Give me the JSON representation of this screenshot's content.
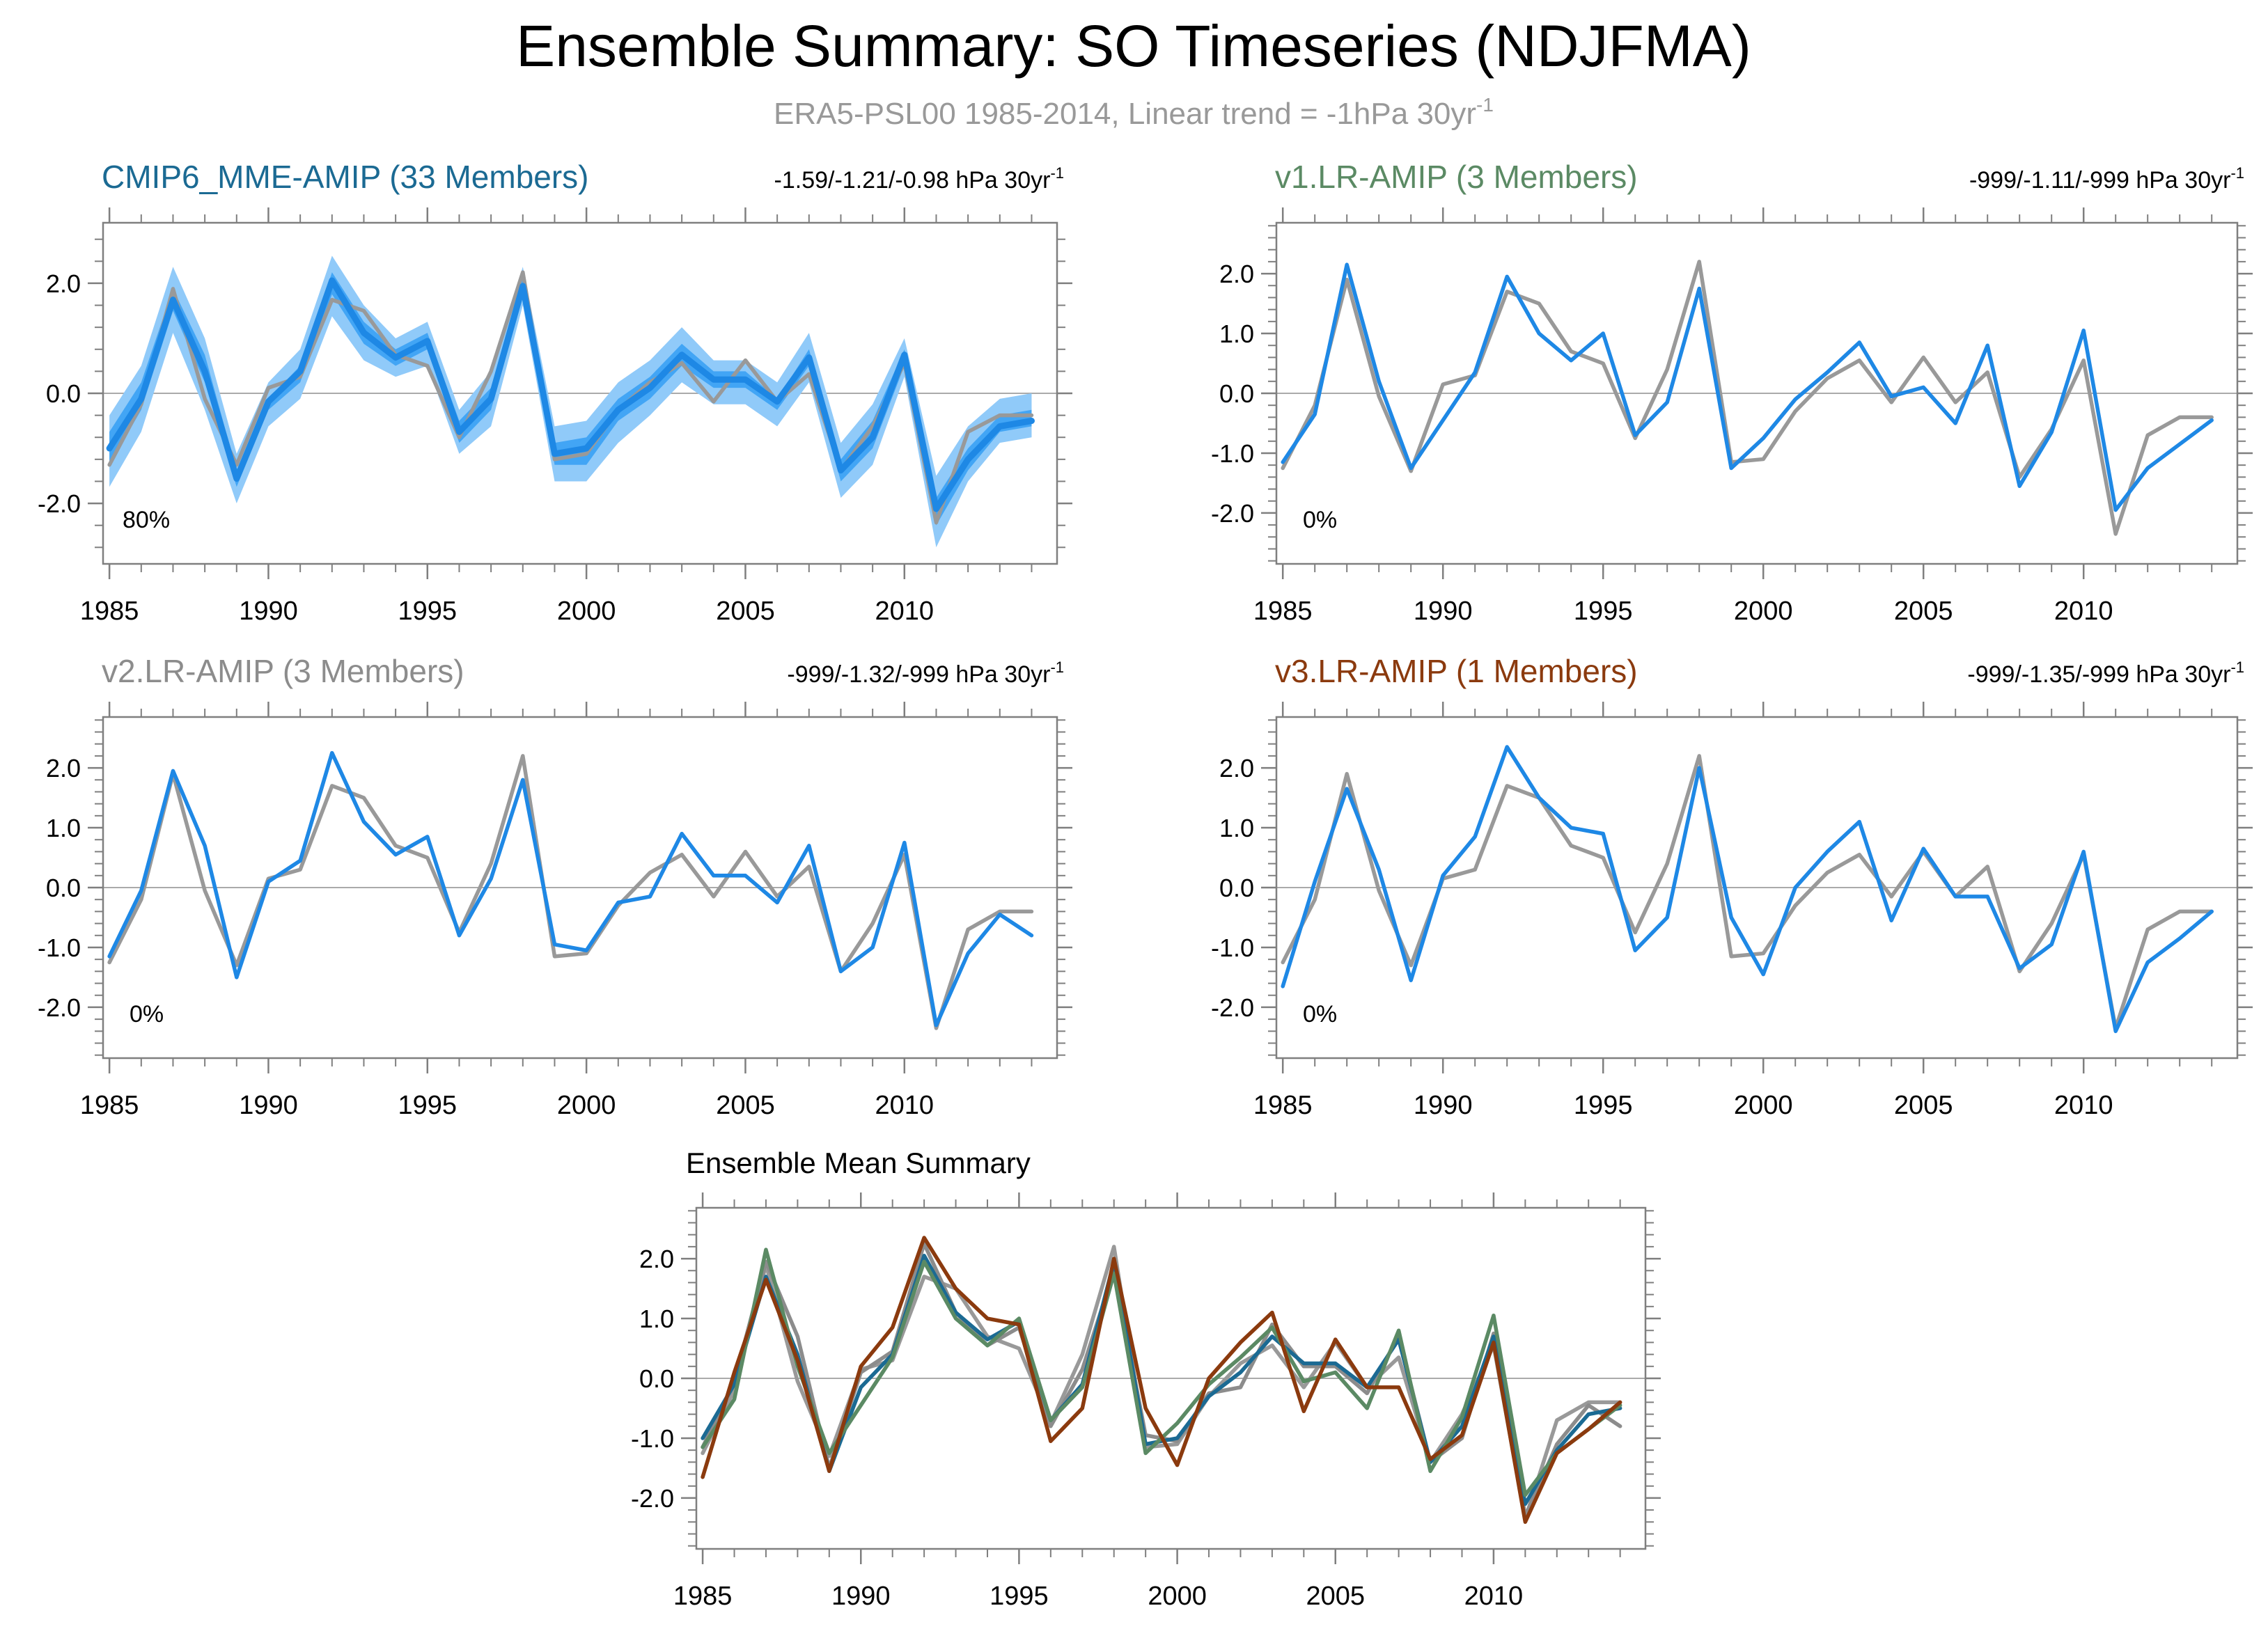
{
  "title": "Ensemble Summary: SO Timeseries (NDJFMA)",
  "subtitle_main": "ERA5-PSL00 1985-2014, Linear trend = -1hPa 30yr",
  "subtitle_sup": "-1",
  "trend_unit_sup": "-1",
  "colors": {
    "obs": "#999999",
    "model": "#1e88e5",
    "band_outer": "#90caf9",
    "band_inner": "#42a5f5",
    "cmip6": "#1b6a93",
    "v1": "#5b8a64",
    "v2": "#8c8c8c",
    "v3": "#8b3a0e"
  },
  "chart_data": [
    {
      "type": "line",
      "title": "CMIP6_MME-AMIP (33 Members)",
      "title_color": "#1b6a93",
      "trend_label": "-1.59/-1.21/-0.98 hPa 30yr",
      "pct_label": "80%",
      "x": [
        1985,
        1986,
        1987,
        1988,
        1989,
        1990,
        1991,
        1992,
        1993,
        1994,
        1995,
        1996,
        1997,
        1998,
        1999,
        2000,
        2001,
        2002,
        2003,
        2004,
        2005,
        2006,
        2007,
        2008,
        2009,
        2010,
        2011,
        2012,
        2013,
        2014
      ],
      "xticks": [
        1985,
        1990,
        1995,
        2000,
        2005,
        2010
      ],
      "xlim": [
        1984.8,
        2014.8
      ],
      "ylim": [
        -3.1,
        3.1
      ],
      "yticks": [
        -2.0,
        0.0,
        2.0
      ],
      "ytick_labels": [
        "-2.0",
        "0.0",
        "2.0"
      ],
      "band_outer": {
        "lower": [
          -1.7,
          -0.7,
          1.1,
          -0.3,
          -2.0,
          -0.6,
          -0.1,
          1.4,
          0.6,
          0.3,
          0.5,
          -1.1,
          -0.6,
          1.6,
          -1.6,
          -1.6,
          -0.9,
          -0.4,
          0.2,
          -0.2,
          -0.2,
          -0.6,
          0.2,
          -1.9,
          -1.3,
          0.3,
          -2.8,
          -1.6,
          -0.9,
          -0.8
        ],
        "upper": [
          -0.4,
          0.5,
          2.3,
          1.0,
          -1.1,
          0.2,
          0.8,
          2.5,
          1.6,
          1.0,
          1.3,
          -0.3,
          0.4,
          2.3,
          -0.6,
          -0.5,
          0.2,
          0.6,
          1.2,
          0.6,
          0.6,
          0.2,
          1.1,
          -0.9,
          -0.2,
          1.0,
          -1.5,
          -0.6,
          -0.1,
          0.0
        ]
      },
      "band_inner": {
        "lower": [
          -1.3,
          -0.3,
          1.5,
          0.2,
          -1.7,
          -0.3,
          0.2,
          1.8,
          0.9,
          0.5,
          0.8,
          -0.9,
          -0.3,
          1.8,
          -1.3,
          -1.3,
          -0.5,
          -0.1,
          0.5,
          0.1,
          0.1,
          -0.3,
          0.5,
          -1.6,
          -1.0,
          0.5,
          -2.4,
          -1.4,
          -0.7,
          -0.6
        ],
        "upper": [
          -0.7,
          0.2,
          1.9,
          0.7,
          -1.4,
          -0.1,
          0.5,
          2.2,
          1.3,
          0.8,
          1.1,
          -0.5,
          0.1,
          2.1,
          -0.9,
          -0.8,
          -0.1,
          0.3,
          0.9,
          0.4,
          0.4,
          -0.1,
          0.8,
          -1.2,
          -0.5,
          0.8,
          -1.9,
          -1.0,
          -0.4,
          -0.3
        ]
      },
      "series": [
        {
          "name": "ERA5",
          "color": "#999999",
          "values": [
            -1.3,
            -0.2,
            1.9,
            -0.1,
            -1.3,
            0.1,
            0.3,
            1.7,
            1.5,
            0.7,
            0.5,
            -0.8,
            0.4,
            2.2,
            -1.2,
            -1.1,
            -0.3,
            0.2,
            0.55,
            -0.15,
            0.6,
            -0.15,
            0.35,
            -1.4,
            -0.6,
            0.55,
            -2.35,
            -0.7,
            -0.4,
            -0.4
          ]
        },
        {
          "name": "ensemble mean",
          "color": "#1e88e5",
          "values": [
            -1.0,
            -0.1,
            1.7,
            0.4,
            -1.55,
            -0.15,
            0.4,
            2.05,
            1.1,
            0.65,
            0.95,
            -0.7,
            -0.1,
            1.95,
            -1.1,
            -1.0,
            -0.3,
            0.1,
            0.7,
            0.25,
            0.25,
            -0.15,
            0.65,
            -1.4,
            -0.8,
            0.7,
            -2.1,
            -1.2,
            -0.6,
            -0.5
          ]
        }
      ]
    },
    {
      "type": "line",
      "title": "v1.LR-AMIP (3 Members)",
      "title_color": "#5b8a64",
      "trend_label": "-999/-1.11/-999 hPa 30yr",
      "pct_label": "0%",
      "x": [
        1985,
        1986,
        1987,
        1988,
        1989,
        1990,
        1991,
        1992,
        1993,
        1994,
        1995,
        1996,
        1997,
        1998,
        1999,
        2000,
        2001,
        2002,
        2003,
        2004,
        2005,
        2006,
        2007,
        2008,
        2009,
        2010,
        2011,
        2012,
        2013,
        2014
      ],
      "xticks": [
        1985,
        1990,
        1995,
        2000,
        2005,
        2010
      ],
      "xlim": [
        1984.8,
        2014.8
      ],
      "ylim": [
        -2.85,
        2.85
      ],
      "yticks": [
        -2.0,
        -1.0,
        0.0,
        1.0,
        2.0
      ],
      "ytick_labels": [
        "-2.0",
        "-1.0",
        "0.0",
        "1.0",
        "2.0"
      ],
      "series": [
        {
          "name": "ERA5",
          "color": "#999999",
          "values": [
            -1.25,
            -0.2,
            1.9,
            -0.05,
            -1.3,
            0.15,
            0.3,
            1.7,
            1.5,
            0.7,
            0.5,
            -0.75,
            0.4,
            2.2,
            -1.15,
            -1.1,
            -0.3,
            0.25,
            0.55,
            -0.15,
            0.6,
            -0.15,
            0.35,
            -1.4,
            -0.6,
            0.55,
            -2.35,
            -0.7,
            -0.4,
            -0.4
          ]
        },
        {
          "name": "v1.LR-AMIP",
          "color": "#1e88e5",
          "values": [
            -1.15,
            -0.35,
            2.15,
            0.2,
            -1.25,
            -0.45,
            0.35,
            1.95,
            1.0,
            0.55,
            1.0,
            -0.7,
            -0.15,
            1.75,
            -1.25,
            -0.75,
            -0.1,
            0.35,
            0.85,
            -0.05,
            0.1,
            -0.5,
            0.8,
            -1.55,
            -0.65,
            1.05,
            -1.95,
            -1.25,
            -0.85,
            -0.45
          ]
        }
      ]
    },
    {
      "type": "line",
      "title": "v2.LR-AMIP (3 Members)",
      "title_color": "#8c8c8c",
      "trend_label": "-999/-1.32/-999 hPa 30yr",
      "pct_label": "0%",
      "x": [
        1985,
        1986,
        1987,
        1988,
        1989,
        1990,
        1991,
        1992,
        1993,
        1994,
        1995,
        1996,
        1997,
        1998,
        1999,
        2000,
        2001,
        2002,
        2003,
        2004,
        2005,
        2006,
        2007,
        2008,
        2009,
        2010,
        2011,
        2012,
        2013,
        2014
      ],
      "xticks": [
        1985,
        1990,
        1995,
        2000,
        2005,
        2010
      ],
      "xlim": [
        1984.8,
        2014.8
      ],
      "ylim": [
        -2.85,
        2.85
      ],
      "yticks": [
        -2.0,
        -1.0,
        0.0,
        1.0,
        2.0
      ],
      "ytick_labels": [
        "-2.0",
        "-1.0",
        "0.0",
        "1.0",
        "2.0"
      ],
      "series": [
        {
          "name": "ERA5",
          "color": "#999999",
          "values": [
            -1.25,
            -0.2,
            1.9,
            -0.05,
            -1.3,
            0.15,
            0.3,
            1.7,
            1.5,
            0.7,
            0.5,
            -0.75,
            0.4,
            2.2,
            -1.15,
            -1.1,
            -0.3,
            0.25,
            0.55,
            -0.15,
            0.6,
            -0.15,
            0.35,
            -1.4,
            -0.6,
            0.55,
            -2.35,
            -0.7,
            -0.4,
            -0.4
          ]
        },
        {
          "name": "v2.LR-AMIP",
          "color": "#1e88e5",
          "values": [
            -1.15,
            -0.05,
            1.95,
            0.7,
            -1.5,
            0.1,
            0.45,
            2.25,
            1.1,
            0.55,
            0.85,
            -0.8,
            0.15,
            1.8,
            -0.95,
            -1.05,
            -0.25,
            -0.15,
            0.9,
            0.2,
            0.2,
            -0.25,
            0.7,
            -1.4,
            -1.0,
            0.75,
            -2.3,
            -1.1,
            -0.45,
            -0.8
          ]
        }
      ]
    },
    {
      "type": "line",
      "title": "v3.LR-AMIP (1 Members)",
      "title_color": "#8b3a0e",
      "trend_label": "-999/-1.35/-999 hPa 30yr",
      "pct_label": "0%",
      "x": [
        1985,
        1986,
        1987,
        1988,
        1989,
        1990,
        1991,
        1992,
        1993,
        1994,
        1995,
        1996,
        1997,
        1998,
        1999,
        2000,
        2001,
        2002,
        2003,
        2004,
        2005,
        2006,
        2007,
        2008,
        2009,
        2010,
        2011,
        2012,
        2013,
        2014
      ],
      "xticks": [
        1985,
        1990,
        1995,
        2000,
        2005,
        2010
      ],
      "xlim": [
        1984.8,
        2014.8
      ],
      "ylim": [
        -2.85,
        2.85
      ],
      "yticks": [
        -2.0,
        -1.0,
        0.0,
        1.0,
        2.0
      ],
      "ytick_labels": [
        "-2.0",
        "-1.0",
        "0.0",
        "1.0",
        "2.0"
      ],
      "series": [
        {
          "name": "ERA5",
          "color": "#999999",
          "values": [
            -1.25,
            -0.2,
            1.9,
            -0.05,
            -1.3,
            0.15,
            0.3,
            1.7,
            1.5,
            0.7,
            0.5,
            -0.75,
            0.4,
            2.2,
            -1.15,
            -1.1,
            -0.3,
            0.25,
            0.55,
            -0.15,
            0.6,
            -0.15,
            0.35,
            -1.4,
            -0.6,
            0.55,
            -2.35,
            -0.7,
            -0.4,
            -0.4
          ]
        },
        {
          "name": "v3.LR-AMIP",
          "color": "#1e88e5",
          "values": [
            -1.65,
            0.1,
            1.65,
            0.3,
            -1.55,
            0.2,
            0.85,
            2.35,
            1.5,
            1.0,
            0.9,
            -1.05,
            -0.5,
            2.0,
            -0.5,
            -1.45,
            0.0,
            0.6,
            1.1,
            -0.55,
            0.65,
            -0.15,
            -0.15,
            -1.35,
            -0.95,
            0.6,
            -2.4,
            -1.25,
            -0.85,
            -0.4
          ]
        }
      ]
    },
    {
      "type": "line",
      "title": "Ensemble Mean Summary",
      "title_color": "#000000",
      "x": [
        1985,
        1986,
        1987,
        1988,
        1989,
        1990,
        1991,
        1992,
        1993,
        1994,
        1995,
        1996,
        1997,
        1998,
        1999,
        2000,
        2001,
        2002,
        2003,
        2004,
        2005,
        2006,
        2007,
        2008,
        2009,
        2010,
        2011,
        2012,
        2013,
        2014
      ],
      "xticks": [
        1985,
        1990,
        1995,
        2000,
        2005,
        2010
      ],
      "xlim": [
        1984.8,
        2014.8
      ],
      "ylim": [
        -2.85,
        2.85
      ],
      "yticks": [
        -2.0,
        -1.0,
        0.0,
        1.0,
        2.0
      ],
      "ytick_labels": [
        "-2.0",
        "-1.0",
        "0.0",
        "1.0",
        "2.0"
      ],
      "series": [
        {
          "name": "ERA5",
          "color": "#999999",
          "values": [
            -1.25,
            -0.2,
            1.9,
            -0.05,
            -1.3,
            0.15,
            0.3,
            1.7,
            1.5,
            0.7,
            0.5,
            -0.75,
            0.4,
            2.2,
            -1.15,
            -1.1,
            -0.3,
            0.25,
            0.55,
            -0.15,
            0.6,
            -0.15,
            0.35,
            -1.4,
            -0.6,
            0.55,
            -2.35,
            -0.7,
            -0.4,
            -0.4
          ]
        },
        {
          "name": "v2.LR-AMIP",
          "color": "#8c8c8c",
          "values": [
            -1.15,
            -0.05,
            1.95,
            0.7,
            -1.5,
            0.1,
            0.45,
            2.25,
            1.1,
            0.55,
            0.85,
            -0.8,
            0.15,
            1.8,
            -0.95,
            -1.05,
            -0.25,
            -0.15,
            0.9,
            0.2,
            0.2,
            -0.25,
            0.7,
            -1.4,
            -1.0,
            0.75,
            -2.3,
            -1.1,
            -0.45,
            -0.8
          ]
        },
        {
          "name": "CMIP6_MME-AMIP",
          "color": "#1b6a93",
          "values": [
            -1.0,
            -0.1,
            1.7,
            0.4,
            -1.55,
            -0.15,
            0.4,
            2.05,
            1.1,
            0.65,
            0.95,
            -0.7,
            -0.1,
            1.95,
            -1.1,
            -1.0,
            -0.3,
            0.1,
            0.7,
            0.25,
            0.25,
            -0.15,
            0.65,
            -1.4,
            -0.8,
            0.7,
            -2.1,
            -1.2,
            -0.6,
            -0.5
          ]
        },
        {
          "name": "v1.LR-AMIP",
          "color": "#5b8a64",
          "values": [
            -1.15,
            -0.35,
            2.15,
            0.2,
            -1.25,
            -0.45,
            0.35,
            1.95,
            1.0,
            0.55,
            1.0,
            -0.7,
            -0.15,
            1.75,
            -1.25,
            -0.75,
            -0.1,
            0.35,
            0.85,
            -0.05,
            0.1,
            -0.5,
            0.8,
            -1.55,
            -0.65,
            1.05,
            -1.95,
            -1.25,
            -0.85,
            -0.45
          ]
        },
        {
          "name": "v3.LR-AMIP",
          "color": "#8b3a0e",
          "values": [
            -1.65,
            0.1,
            1.65,
            0.3,
            -1.55,
            0.2,
            0.85,
            2.35,
            1.5,
            1.0,
            0.9,
            -1.05,
            -0.5,
            2.0,
            -0.5,
            -1.45,
            0.0,
            0.6,
            1.1,
            -0.55,
            0.65,
            -0.15,
            -0.15,
            -1.35,
            -0.95,
            0.6,
            -2.4,
            -1.25,
            -0.85,
            -0.4
          ]
        }
      ]
    }
  ]
}
